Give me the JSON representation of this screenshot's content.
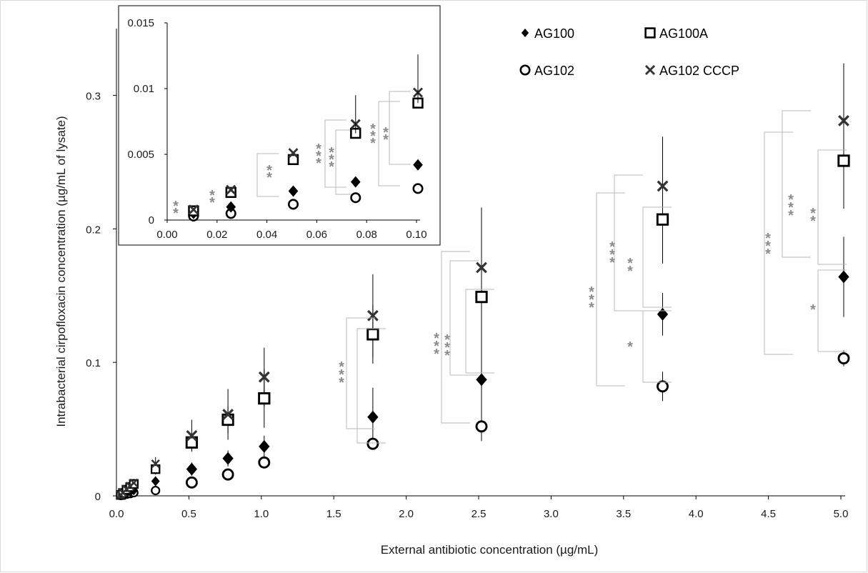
{
  "chart_data": [
    {
      "type": "scatter",
      "xlabel": "External antibiotic concentration (µg/mL)",
      "ylabel": "Intrabacterial cirpofloxacin concentration (µg/mL of lysate)",
      "xlim": [
        0,
        5
      ],
      "ylim": [
        0,
        0.35
      ],
      "x_ticks": [
        "0.0",
        "0.5",
        "1.0",
        "1.5",
        "2.0",
        "2.5",
        "3.0",
        "3.5",
        "4.0",
        "4.5",
        "5.0"
      ],
      "y_ticks": [
        "0",
        "0.1",
        "0.2",
        "0.3"
      ],
      "legend": "top-right",
      "x": [
        0.01,
        0.025,
        0.05,
        0.075,
        0.1,
        0.25,
        0.5,
        0.75,
        1.0,
        1.75,
        2.5,
        3.75,
        5.0
      ],
      "series": [
        {
          "name": "AG100",
          "marker": "diamond",
          "values": [
            0.0005,
            0.001,
            0.0022,
            0.0029,
            0.0042,
            0.011,
            0.02,
            0.028,
            0.037,
            0.059,
            0.087,
            0.136,
            0.164
          ],
          "err": [
            null,
            null,
            null,
            null,
            null,
            null,
            0.005,
            0.006,
            0.008,
            0.022,
            0.028,
            0.016,
            0.03
          ]
        },
        {
          "name": "AG100A",
          "marker": "square",
          "values": [
            0.0007,
            0.0021,
            0.0046,
            0.0066,
            0.0089,
            0.02,
            0.04,
            0.057,
            0.073,
            0.121,
            0.149,
            0.207,
            0.251
          ],
          "err": [
            null,
            null,
            null,
            0.002,
            0.0018,
            0.004,
            0.006,
            0.01,
            0.022,
            0.022,
            0.038,
            0.033,
            0.036
          ]
        },
        {
          "name": "AG102",
          "marker": "circle",
          "values": [
            0.0003,
            0.0005,
            0.0012,
            0.0017,
            0.0024,
            0.004,
            0.01,
            0.016,
            0.025,
            0.039,
            0.052,
            0.082,
            0.103
          ],
          "err": [
            null,
            null,
            null,
            null,
            null,
            null,
            null,
            0.003,
            0.003,
            0.002,
            0.011,
            0.011,
            0.006
          ]
        },
        {
          "name": "AG102 CCCP",
          "marker": "x",
          "values": [
            0.0008,
            0.0023,
            0.0051,
            0.0073,
            0.0097,
            0.024,
            0.045,
            0.061,
            0.089,
            0.135,
            0.171,
            0.232,
            0.281
          ],
          "err": [
            null,
            null,
            null,
            0.0022,
            0.0029,
            0.005,
            0.012,
            0.019,
            0.022,
            0.031,
            0.045,
            0.037,
            0.043
          ]
        }
      ],
      "annotations": [
        "**",
        "***",
        "***",
        "**",
        "*",
        "***",
        "***",
        "**",
        "***",
        "**",
        "*"
      ]
    },
    {
      "type": "scatter",
      "inset": true,
      "xlim": [
        0,
        0.1
      ],
      "ylim": [
        0,
        0.015
      ],
      "x_ticks": [
        "0.00",
        "0.02",
        "0.04",
        "0.06",
        "0.08",
        "0.10"
      ],
      "y_ticks": [
        "0",
        "0.005",
        "0.01",
        "0.015"
      ],
      "x": [
        0.01,
        0.025,
        0.05,
        0.075,
        0.1
      ],
      "series": [
        {
          "name": "AG100",
          "marker": "diamond",
          "values": [
            0.0005,
            0.001,
            0.0022,
            0.0029,
            0.0042
          ]
        },
        {
          "name": "AG100A",
          "marker": "square",
          "values": [
            0.0007,
            0.0021,
            0.0046,
            0.0066,
            0.0089
          ]
        },
        {
          "name": "AG102",
          "marker": "circle",
          "values": [
            0.0003,
            0.0005,
            0.0012,
            0.0017,
            0.0024
          ]
        },
        {
          "name": "AG102 CCCP",
          "marker": "x",
          "values": [
            0.0008,
            0.0023,
            0.0051,
            0.0073,
            0.0097
          ]
        }
      ],
      "annotations": [
        "**",
        "**",
        "**",
        "***",
        "***",
        "***"
      ]
    }
  ]
}
